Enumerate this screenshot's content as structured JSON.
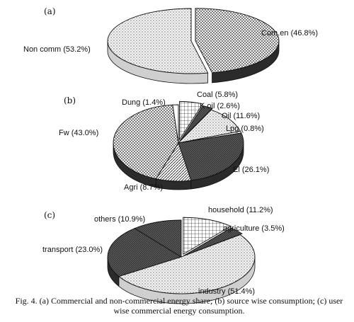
{
  "caption": "Fig. 4. (a) Commercial and non-commercial energy share; (b) source wise consumption; (c) user wise commercial energy consumption.",
  "chart_data": [
    {
      "type": "pie",
      "panel": "(a)",
      "title": "",
      "slices": [
        {
          "label": "Com.en (46.8%)",
          "name": "Com.en",
          "value": 46.8,
          "pattern": "crosshatch"
        },
        {
          "label": "Non comm (53.2%)",
          "name": "Non comm",
          "value": 53.2,
          "pattern": "dots"
        }
      ]
    },
    {
      "type": "pie",
      "panel": "(b)",
      "title": "",
      "slices": [
        {
          "label": "Coal (5.8%)",
          "name": "Coal",
          "value": 5.8,
          "pattern": "grid"
        },
        {
          "label": "K oil (2.6%)",
          "name": "K oil",
          "value": 2.6,
          "pattern": "dark"
        },
        {
          "label": "Oil (11.6%)",
          "name": "Oil",
          "value": 11.6,
          "pattern": "dots"
        },
        {
          "label": "Lpg (0.8%)",
          "name": "Lpg",
          "value": 0.8,
          "pattern": "white"
        },
        {
          "label": "El (26.1%)",
          "name": "El",
          "value": 26.1,
          "pattern": "dark"
        },
        {
          "label": "Agri (8.7%)",
          "name": "Agri",
          "value": 8.7,
          "pattern": "hatch"
        },
        {
          "label": "Fw (43.0%)",
          "name": "Fw",
          "value": 43.0,
          "pattern": "crosshatch"
        },
        {
          "label": "Dung (1.4%)",
          "name": "Dung",
          "value": 1.4,
          "pattern": "white"
        }
      ]
    },
    {
      "type": "pie",
      "panel": "(c)",
      "title": "",
      "slices": [
        {
          "label": "household (11.2%)",
          "name": "household",
          "value": 11.2,
          "pattern": "grid"
        },
        {
          "label": "agriculture (3.5%)",
          "name": "agriculture",
          "value": 3.5,
          "pattern": "dark"
        },
        {
          "label": "industry (51.4%)",
          "name": "industry",
          "value": 51.4,
          "pattern": "dots"
        },
        {
          "label": "transport (23.0%)",
          "name": "transport",
          "value": 23.0,
          "pattern": "dark"
        },
        {
          "label": "others (10.9%)",
          "name": "others",
          "value": 10.9,
          "pattern": "dark"
        }
      ]
    }
  ]
}
